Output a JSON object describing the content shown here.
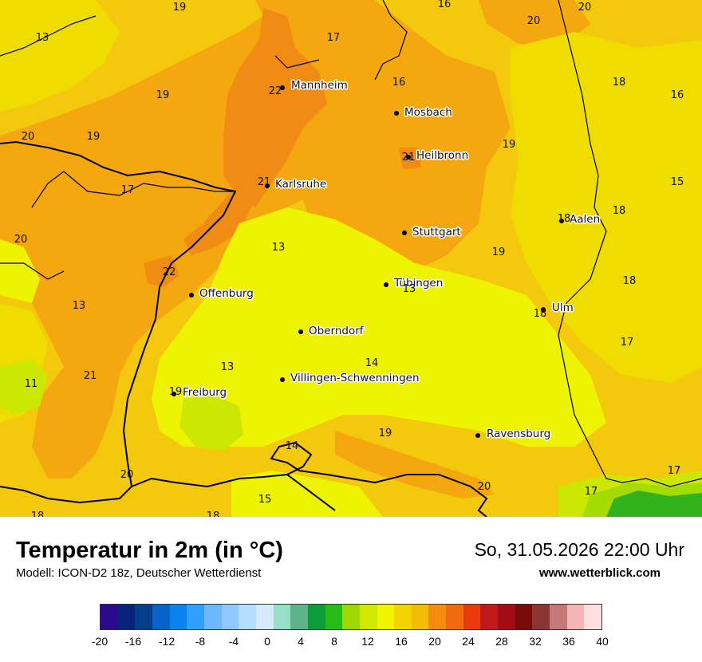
{
  "colors": {
    "orange_dark": "#f08c14",
    "orange": "#f5a70f",
    "yellow_orange": "#f4c80c",
    "yellow": "#f0dd00",
    "lime_yellow": "#eef300",
    "lime": "#cde800",
    "green_light": "#a4db00",
    "green": "#31b11b",
    "border": "#000000"
  },
  "cities": [
    {
      "name": "Mannheim"
    },
    {
      "name": "Mosbach"
    },
    {
      "name": "Heilbronn"
    },
    {
      "name": "Karlsruhe"
    },
    {
      "name": "Aalen"
    },
    {
      "name": "Stuttgart"
    },
    {
      "name": "Tübingen"
    },
    {
      "name": "Offenburg"
    },
    {
      "name": "Ulm"
    },
    {
      "name": "Oberndorf"
    },
    {
      "name": "Villingen-Schwenningen"
    },
    {
      "name": "Freiburg"
    },
    {
      "name": "Ravensburg"
    }
  ],
  "temps": [
    "19",
    "16",
    "20",
    "20",
    "13",
    "17",
    "22",
    "16",
    "18",
    "19",
    "16",
    "20",
    "19",
    "21",
    "19",
    "17",
    "15",
    "21",
    "18",
    "18",
    "20",
    "13",
    "19",
    "22",
    "18",
    "13",
    "13",
    "18",
    "21",
    "17",
    "14",
    "11",
    "13",
    "19",
    "19",
    "14",
    "20",
    "17",
    "17",
    "20",
    "15",
    "18",
    "18"
  ],
  "title": "Temperatur in 2m (in °C)",
  "model": "Modell: ICON-D2 18z, Deutscher Wetterdienst",
  "datetime": "So, 31.05.2026 22:00 Uhr",
  "website": "www.wetterblick.com",
  "legend": {
    "colors": [
      "#2c0a8c",
      "#0a237a",
      "#073e8c",
      "#0863c8",
      "#0b83ee",
      "#2fa0fd",
      "#6cb7fd",
      "#8fc8fe",
      "#b6dcfe",
      "#d6eafe",
      "#95e0c4",
      "#5fb38c",
      "#0c9c3c",
      "#27bc18",
      "#a0d700",
      "#cfe800",
      "#f1f400",
      "#f2d400",
      "#f4bb06",
      "#f58c0f",
      "#f06a0e",
      "#e93c0c",
      "#c01a1a",
      "#a30b15",
      "#7a0b0b",
      "#8b3535",
      "#c47878",
      "#f4b5b5",
      "#fddede"
    ],
    "ticks": [
      "-20",
      "-16",
      "-12",
      "-8",
      "-4",
      "0",
      "4",
      "8",
      "12",
      "16",
      "20",
      "24",
      "28",
      "32",
      "36",
      "40"
    ]
  }
}
